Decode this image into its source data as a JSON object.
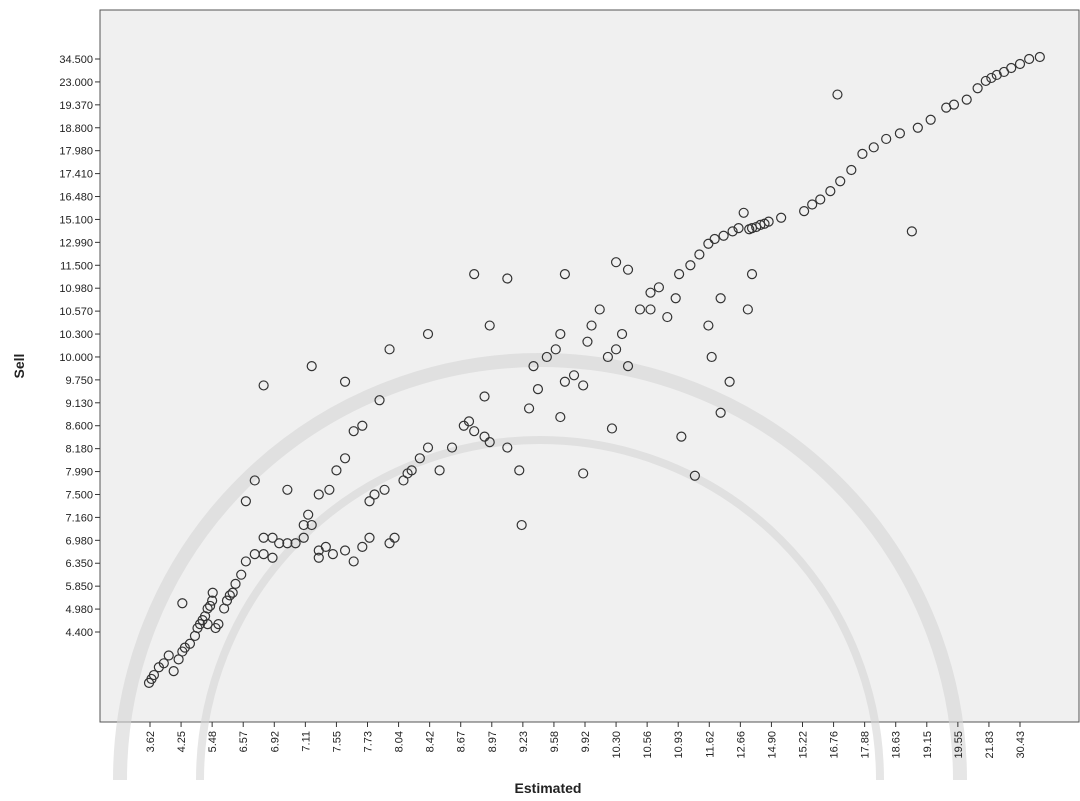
{
  "chart_data": {
    "type": "scatter",
    "x_label": "Estimated",
    "y_label": "Sell",
    "xlim": [
      2.6,
      47
    ],
    "ylim": [
      2.1,
      59
    ],
    "xticks": [
      3.62,
      4.25,
      5.48,
      6.57,
      6.92,
      7.11,
      7.55,
      7.73,
      8.04,
      8.42,
      8.67,
      8.97,
      9.23,
      9.58,
      9.92,
      {
        "value": 10.3,
        "label": "10.30"
      },
      10.56,
      10.93,
      11.62,
      12.66,
      {
        "value": 14.9,
        "label": "14.90"
      },
      15.22,
      16.76,
      17.88,
      18.63,
      19.15,
      19.55,
      21.83,
      30.43
    ],
    "yticks": [
      {
        "value": 4.4,
        "label": "4.400"
      },
      {
        "value": 4.98,
        "label": "4.980"
      },
      {
        "value": 5.85,
        "label": "5.850"
      },
      {
        "value": 6.35,
        "label": "6.350"
      },
      {
        "value": 6.98,
        "label": "6.980"
      },
      {
        "value": 7.16,
        "label": "7.160"
      },
      {
        "value": 7.5,
        "label": "7.500"
      },
      {
        "value": 7.99,
        "label": "7.990"
      },
      {
        "value": 8.18,
        "label": "8.180"
      },
      {
        "value": 8.6,
        "label": "8.600"
      },
      {
        "value": 9.13,
        "label": "9.130"
      },
      {
        "value": 9.75,
        "label": "9.750"
      },
      {
        "value": 10,
        "label": "10.000"
      },
      {
        "value": 10.3,
        "label": "10.300"
      },
      {
        "value": 10.57,
        "label": "10.570"
      },
      {
        "value": 10.98,
        "label": "10.980"
      },
      {
        "value": 11.5,
        "label": "11.500"
      },
      {
        "value": 12.99,
        "label": "12.990"
      },
      {
        "value": 15.1,
        "label": "15.100"
      },
      {
        "value": 16.48,
        "label": "16.480"
      },
      {
        "value": 17.41,
        "label": "17.410"
      },
      {
        "value": 17.98,
        "label": "17.980"
      },
      {
        "value": 18.8,
        "label": "18.800"
      },
      {
        "value": 19.37,
        "label": "19.370"
      },
      {
        "value": 23,
        "label": "23.000"
      },
      {
        "value": 34.5,
        "label": "34.500"
      }
    ],
    "color": "#333333",
    "x": [
      3.6,
      3.65,
      3.7,
      3.8,
      3.9,
      4.0,
      4.1,
      4.2,
      4.3,
      4.4,
      4.6,
      4.8,
      4.9,
      5.0,
      5.1,
      5.2,
      5.3,
      5.4,
      5.48,
      5.5,
      5.3,
      5.6,
      5.7,
      5.9,
      6.0,
      6.1,
      6.2,
      6.3,
      6.5,
      6.6,
      6.7,
      6.8,
      6.8,
      6.9,
      6.95,
      7.0,
      7.05,
      7.1,
      7.1,
      7.15,
      7.2,
      7.3,
      7.3,
      7.4,
      7.5,
      7.6,
      7.65,
      7.7,
      7.75,
      4.3,
      6.6,
      6.7,
      6.9,
      7.0,
      7.3,
      7.45,
      7.55,
      7.6,
      7.65,
      7.7,
      7.2,
      7.6,
      6.8,
      7.75,
      7.8,
      7.9,
      7.95,
      8.0,
      8.1,
      8.15,
      8.2,
      8.3,
      8.4,
      8.5,
      8.6,
      8.7,
      8.75,
      8.8,
      8.9,
      8.95,
      7.85,
      7.95,
      8.4,
      8.8,
      9.1,
      8.95,
      8.9,
      9.1,
      9.2,
      9.22,
      9.3,
      9.35,
      9.4,
      9.5,
      9.6,
      9.65,
      9.7,
      9.8,
      9.9,
      9.95,
      10.0,
      10.1,
      10.2,
      10.3,
      10.35,
      10.4,
      9.7,
      9.65,
      9.9,
      10.25,
      10.3,
      10.4,
      10.5,
      10.6,
      10.7,
      10.8,
      10.9,
      10.95,
      11.2,
      11.4,
      11.6,
      11.8,
      12.1,
      12.4,
      12.6,
      12.9,
      13.3,
      13.5,
      13.8,
      14.1,
      14.4,
      14.7,
      15.0,
      15.3,
      15.7,
      16.1,
      16.6,
      17.0,
      17.4,
      17.8,
      18.1,
      18.4,
      18.7,
      19.0,
      19.2,
      19.4,
      19.5,
      20.2,
      21.0,
      21.6,
      22.5,
      24,
      26,
      28,
      30.43,
      33,
      36,
      16.9,
      18.9,
      10.6,
      11.7,
      12.3,
      11.0,
      11.3,
      11.6,
      12.0,
      13.2,
      13.5,
      12.0
    ],
    "values": [
      3.1,
      3.2,
      3.3,
      3.5,
      3.6,
      3.8,
      3.4,
      3.7,
      3.9,
      4.0,
      4.1,
      4.3,
      4.5,
      4.6,
      4.7,
      4.8,
      5.0,
      5.1,
      5.3,
      5.6,
      4.6,
      4.5,
      4.6,
      5.0,
      5.3,
      5.5,
      5.6,
      5.9,
      6.1,
      6.4,
      6.6,
      7.0,
      6.6,
      6.5,
      6.9,
      6.9,
      6.9,
      7.1,
      7.0,
      7.2,
      7.1,
      6.5,
      6.7,
      6.8,
      6.6,
      6.7,
      6.4,
      6.8,
      7.0,
      5.2,
      7.4,
      7.8,
      7.0,
      7.6,
      7.5,
      7.6,
      8.0,
      8.1,
      8.5,
      8.6,
      9.9,
      9.7,
      9.6,
      7.4,
      7.5,
      7.6,
      6.9,
      7.0,
      7.8,
      7.95,
      8.0,
      8.1,
      8.2,
      8.0,
      8.2,
      8.6,
      8.7,
      8.5,
      8.4,
      8.3,
      9.2,
      10.1,
      10.3,
      11.3,
      11.2,
      10.4,
      9.3,
      8.2,
      8.0,
      7.1,
      9.0,
      9.9,
      9.5,
      10.0,
      10.1,
      10.3,
      9.7,
      9.8,
      9.6,
      10.2,
      10.4,
      10.6,
      10.0,
      10.1,
      10.3,
      9.9,
      11.3,
      8.8,
      7.95,
      8.55,
      11.7,
      11.4,
      10.6,
      10.9,
      11.0,
      10.5,
      10.8,
      11.3,
      11.5,
      12.2,
      12.9,
      13.3,
      13.6,
      14.0,
      14.3,
      15.5,
      14.2,
      14.3,
      14.4,
      14.6,
      14.7,
      14.9,
      15.2,
      15.6,
      16.0,
      16.3,
      16.7,
      17.1,
      17.5,
      17.9,
      18.1,
      18.4,
      18.6,
      18.8,
      19.0,
      19.3,
      19.4,
      20.2,
      22.0,
      23.5,
      25,
      26.5,
      28,
      30,
      32,
      34.5,
      35.5,
      21,
      14,
      10.6,
      10.0,
      9.7,
      8.4,
      7.9,
      10.4,
      10.8,
      10.6,
      11.3,
      8.9
    ]
  }
}
